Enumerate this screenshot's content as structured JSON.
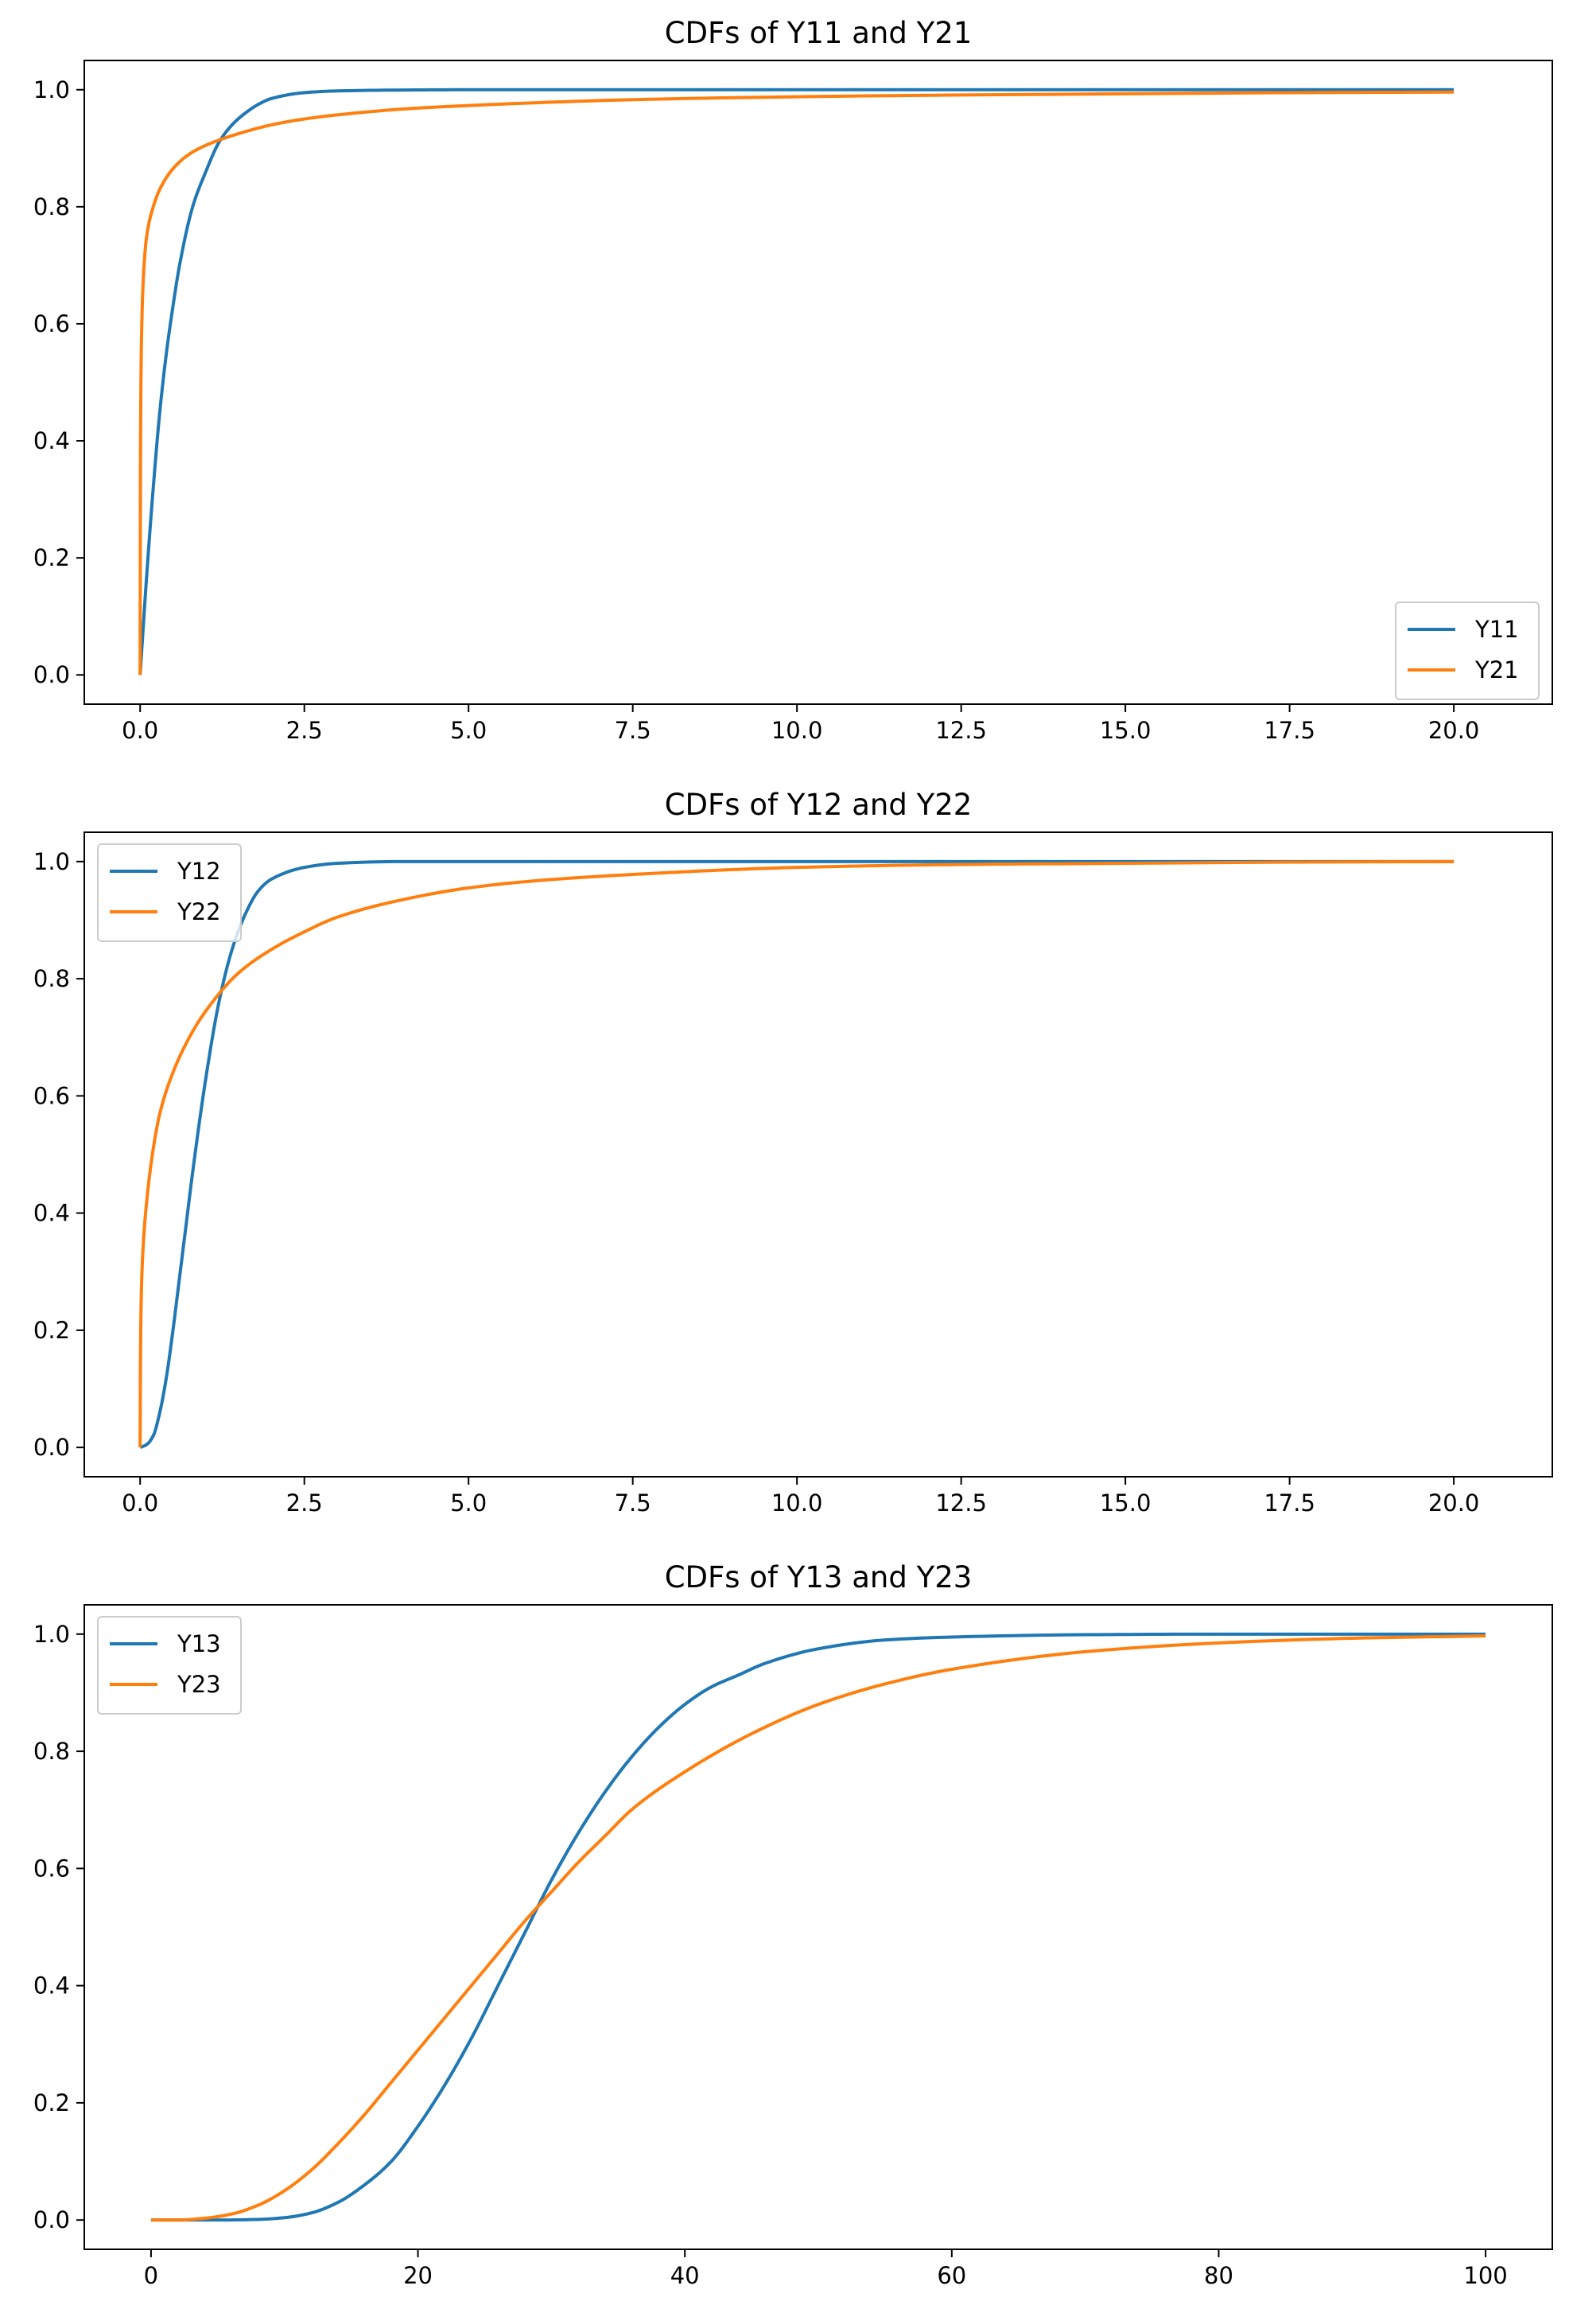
{
  "chart_data": [
    {
      "type": "line",
      "title": "CDFs of Y11 and Y21",
      "xlabel": "",
      "ylabel": "",
      "xlim": [
        -0.85,
        21.5
      ],
      "ylim": [
        -0.05,
        1.05
      ],
      "xticks": [
        0,
        2.5,
        5,
        7.5,
        10,
        12.5,
        15,
        17.5,
        20
      ],
      "xtick_labels": [
        "0.0",
        "2.5",
        "5.0",
        "7.5",
        "10.0",
        "12.5",
        "15.0",
        "17.5",
        "20.0"
      ],
      "yticks": [
        0,
        0.2,
        0.4,
        0.6,
        0.8,
        1.0
      ],
      "ytick_labels": [
        "0.0",
        "0.2",
        "0.4",
        "0.6",
        "0.8",
        "1.0"
      ],
      "grid": false,
      "legend_position": "lower right",
      "series": [
        {
          "name": "Y11",
          "color": "#1f77b4",
          "x": [
            0,
            0.1,
            0.2,
            0.3,
            0.4,
            0.5,
            0.6,
            0.8,
            1.0,
            1.2,
            1.4,
            1.6,
            1.8,
            2.0,
            2.5,
            3.0,
            4.0,
            5.0,
            7.5,
            10,
            15,
            20
          ],
          "y": [
            0,
            0.17,
            0.32,
            0.45,
            0.55,
            0.63,
            0.7,
            0.8,
            0.86,
            0.91,
            0.94,
            0.96,
            0.975,
            0.985,
            0.995,
            0.998,
            0.9995,
            1.0,
            1.0,
            1.0,
            1.0,
            1.0
          ]
        },
        {
          "name": "Y21",
          "color": "#ff7f0e",
          "x": [
            0,
            0.005,
            0.01,
            0.02,
            0.05,
            0.1,
            0.2,
            0.3,
            0.5,
            0.75,
            1.0,
            1.5,
            2.0,
            2.5,
            3.0,
            4.0,
            5.0,
            7.5,
            10,
            12.5,
            15,
            17.5,
            20
          ],
          "y": [
            0,
            0.36,
            0.47,
            0.57,
            0.68,
            0.75,
            0.8,
            0.83,
            0.865,
            0.89,
            0.905,
            0.925,
            0.94,
            0.95,
            0.957,
            0.967,
            0.973,
            0.983,
            0.988,
            0.991,
            0.993,
            0.995,
            0.996
          ]
        }
      ]
    },
    {
      "type": "line",
      "title": "CDFs of Y12 and Y22",
      "xlabel": "",
      "ylabel": "",
      "xlim": [
        -0.85,
        21.5
      ],
      "ylim": [
        -0.05,
        1.05
      ],
      "xticks": [
        0,
        2.5,
        5,
        7.5,
        10,
        12.5,
        15,
        17.5,
        20
      ],
      "xtick_labels": [
        "0.0",
        "2.5",
        "5.0",
        "7.5",
        "10.0",
        "12.5",
        "15.0",
        "17.5",
        "20.0"
      ],
      "yticks": [
        0,
        0.2,
        0.4,
        0.6,
        0.8,
        1.0
      ],
      "ytick_labels": [
        "0.0",
        "0.2",
        "0.4",
        "0.6",
        "0.8",
        "1.0"
      ],
      "grid": false,
      "legend_position": "upper left",
      "series": [
        {
          "name": "Y12",
          "color": "#1f77b4",
          "x": [
            0,
            0.1,
            0.2,
            0.3,
            0.4,
            0.5,
            0.6,
            0.7,
            0.8,
            1.0,
            1.2,
            1.4,
            1.6,
            1.8,
            2.0,
            2.5,
            3.0,
            4.0,
            5.0,
            10,
            15,
            20
          ],
          "y": [
            0,
            0.005,
            0.02,
            0.06,
            0.12,
            0.2,
            0.29,
            0.38,
            0.47,
            0.63,
            0.76,
            0.85,
            0.91,
            0.95,
            0.97,
            0.99,
            0.997,
            1.0,
            1.0,
            1.0,
            1.0,
            1.0
          ]
        },
        {
          "name": "Y22",
          "color": "#ff7f0e",
          "x": [
            0,
            0.005,
            0.02,
            0.05,
            0.1,
            0.2,
            0.3,
            0.5,
            0.75,
            1.0,
            1.5,
            2.0,
            2.5,
            3.0,
            4.0,
            5.0,
            6.0,
            7.5,
            10,
            12.5,
            15,
            17.5,
            20
          ],
          "y": [
            0,
            0.15,
            0.27,
            0.35,
            0.42,
            0.51,
            0.57,
            0.64,
            0.7,
            0.745,
            0.81,
            0.85,
            0.88,
            0.905,
            0.935,
            0.955,
            0.967,
            0.978,
            0.99,
            0.995,
            0.997,
            0.999,
            1.0
          ]
        }
      ]
    },
    {
      "type": "line",
      "title": "CDFs of Y13 and Y23",
      "xlabel": "",
      "ylabel": "",
      "xlim": [
        -5,
        105
      ],
      "ylim": [
        -0.05,
        1.05
      ],
      "xticks": [
        0,
        20,
        40,
        60,
        80,
        100
      ],
      "xtick_labels": [
        "0",
        "20",
        "40",
        "60",
        "80",
        "100"
      ],
      "yticks": [
        0,
        0.2,
        0.4,
        0.6,
        0.8,
        1.0
      ],
      "ytick_labels": [
        "0.0",
        "0.2",
        "0.4",
        "0.6",
        "0.8",
        "1.0"
      ],
      "grid": false,
      "legend_position": "upper left",
      "series": [
        {
          "name": "Y13",
          "color": "#1f77b4",
          "x": [
            0,
            5,
            8,
            10,
            12,
            14,
            16,
            18,
            20,
            22,
            24,
            26,
            28,
            30,
            32,
            34,
            36,
            38,
            40,
            42,
            44,
            46,
            50,
            55,
            60,
            70,
            80,
            90,
            100
          ],
          "y": [
            0,
            0.0,
            0.001,
            0.004,
            0.012,
            0.03,
            0.06,
            0.1,
            0.16,
            0.23,
            0.31,
            0.4,
            0.49,
            0.58,
            0.66,
            0.73,
            0.79,
            0.84,
            0.88,
            0.91,
            0.93,
            0.95,
            0.975,
            0.99,
            0.995,
            0.999,
            1.0,
            1.0,
            1.0
          ],
          "xfix": null
        },
        {
          "name": "Y23",
          "color": "#ff7f0e",
          "x": [
            0,
            2,
            4,
            6,
            8,
            10,
            12,
            14,
            16,
            18,
            20,
            22,
            24,
            26,
            28,
            30,
            32,
            34,
            36,
            40,
            45,
            50,
            55,
            60,
            70,
            80,
            90,
            100
          ],
          "y": [
            0,
            0.0,
            0.003,
            0.01,
            0.025,
            0.05,
            0.085,
            0.13,
            0.18,
            0.235,
            0.29,
            0.345,
            0.4,
            0.455,
            0.51,
            0.56,
            0.61,
            0.655,
            0.7,
            0.765,
            0.83,
            0.88,
            0.915,
            0.94,
            0.97,
            0.985,
            0.993,
            0.997
          ]
        }
      ]
    }
  ]
}
